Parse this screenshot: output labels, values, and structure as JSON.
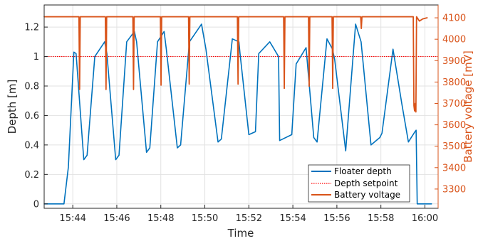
{
  "chart_data": {
    "type": "line",
    "title": "",
    "xlabel": "Time",
    "ylabel_left": "Depth [m]",
    "ylabel_right": "Battery voltage [mV]",
    "x_unit": "minutes since 15:00",
    "xlim": [
      42.7,
      60.6
    ],
    "ylim_left": [
      -0.03,
      1.35
    ],
    "ylim_right": [
      3210,
      4160
    ],
    "x_ticks": [
      44,
      46,
      48,
      50,
      52,
      54,
      56,
      58,
      60
    ],
    "x_tick_labels": [
      "15:44",
      "15:46",
      "15:48",
      "15:50",
      "15:52",
      "15:54",
      "15:56",
      "15:58",
      "16:00"
    ],
    "y_left_ticks": [
      0,
      0.2,
      0.4,
      0.6,
      0.8,
      1,
      1.2
    ],
    "y_left_tick_labels": [
      "0",
      "0.2",
      "0.4",
      "0.6",
      "0.8",
      "1",
      "1.2"
    ],
    "y_right_ticks": [
      3300,
      3400,
      3500,
      3600,
      3700,
      3800,
      3900,
      4000,
      4100
    ],
    "y_right_tick_labels": [
      "3300",
      "3400",
      "3500",
      "3600",
      "3700",
      "3800",
      "3900",
      "4000",
      "4100"
    ],
    "grid": true,
    "legend_position": "bottom-right",
    "colors": {
      "depth": "#0072BD",
      "setpoint": "#FF0000",
      "battery": "#D95319"
    },
    "series": [
      {
        "name": "Floater depth",
        "axis": "left",
        "style": "solid",
        "x": [
          42.7,
          43.6,
          43.8,
          44.05,
          44.15,
          44.5,
          44.65,
          45.0,
          45.45,
          45.55,
          45.95,
          46.1,
          46.45,
          46.8,
          46.9,
          47.35,
          47.5,
          47.85,
          48.15,
          48.25,
          48.75,
          48.9,
          49.3,
          49.85,
          50.05,
          50.6,
          50.75,
          51.25,
          51.55,
          51.6,
          52.0,
          52.3,
          52.45,
          52.95,
          53.35,
          53.4,
          53.95,
          54.15,
          54.6,
          54.95,
          55.1,
          55.55,
          55.8,
          55.9,
          56.4,
          56.85,
          57.1,
          57.55,
          57.95,
          58.05,
          58.55,
          58.95,
          59.25,
          59.55,
          59.6,
          59.65,
          59.7,
          60.3
        ],
        "y": [
          0.0,
          0.0,
          0.25,
          1.03,
          1.02,
          0.3,
          0.33,
          1.0,
          1.1,
          1.02,
          0.3,
          0.33,
          1.1,
          1.17,
          1.1,
          0.35,
          0.38,
          1.1,
          1.17,
          1.05,
          0.38,
          0.4,
          1.1,
          1.22,
          1.05,
          0.42,
          0.44,
          1.12,
          1.1,
          1.02,
          0.47,
          0.49,
          1.02,
          1.1,
          1.0,
          0.43,
          0.47,
          0.95,
          1.06,
          0.45,
          0.42,
          1.12,
          1.05,
          0.98,
          0.36,
          1.22,
          1.1,
          0.4,
          0.45,
          0.48,
          1.05,
          0.68,
          0.42,
          0.49,
          0.5,
          0.0,
          0.0,
          0.0
        ]
      },
      {
        "name": "Depth setpoint",
        "axis": "left",
        "style": "dotted",
        "x": [
          42.7,
          60.6
        ],
        "y": [
          1.0,
          1.0
        ]
      },
      {
        "name": "Battery voltage",
        "axis": "right",
        "style": "solid",
        "x": [
          42.7,
          44.28,
          44.31,
          44.34,
          45.48,
          45.51,
          45.54,
          46.73,
          46.76,
          46.79,
          47.98,
          48.01,
          48.04,
          49.26,
          49.29,
          49.32,
          51.48,
          51.51,
          51.54,
          53.58,
          53.61,
          53.64,
          54.71,
          54.74,
          54.77,
          55.78,
          55.81,
          55.84,
          57.08,
          57.11,
          57.14,
          59.47,
          59.5,
          59.53,
          59.56,
          59.59,
          59.62,
          59.75,
          59.9,
          60.1
        ],
        "y": [
          4105,
          4105,
          3765,
          4105,
          4105,
          3765,
          4105,
          4105,
          3765,
          4105,
          4105,
          3785,
          4105,
          4105,
          3790,
          4105,
          4105,
          3790,
          4105,
          4105,
          3770,
          4105,
          4105,
          3780,
          4105,
          4105,
          3770,
          4105,
          4105,
          4050,
          4105,
          4105,
          3690,
          3665,
          3700,
          3660,
          4105,
          4085,
          4095,
          4100
        ]
      }
    ]
  }
}
